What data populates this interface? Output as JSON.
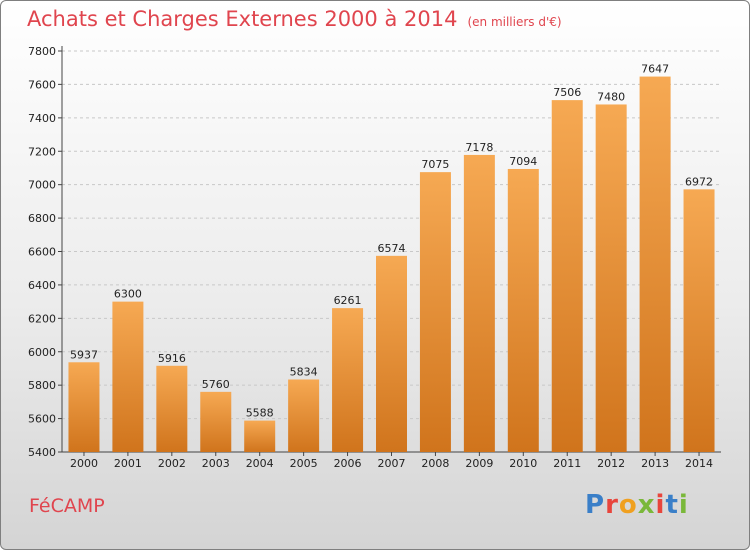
{
  "title": "Achats et Charges Externes 2000 à 2014",
  "unit_note": "(en milliers d'€)",
  "city": "FéCAMP",
  "logo": {
    "text": "Proxiti",
    "letter_colors": [
      "#3a7fc8",
      "#e8453c",
      "#f0a020",
      "#7ab83a",
      "#e8453c",
      "#3a7fc8",
      "#7ab83a"
    ]
  },
  "colors": {
    "bar_top": "#f6a953",
    "bar_bottom": "#d0741c",
    "title": "#e0454e"
  },
  "chart_data": {
    "type": "bar",
    "title": "Achats et Charges Externes 2000 à 2014",
    "subtitle": "(en milliers d'€)",
    "categories": [
      "2000",
      "2001",
      "2002",
      "2003",
      "2004",
      "2005",
      "2006",
      "2007",
      "2008",
      "2009",
      "2010",
      "2011",
      "2012",
      "2013",
      "2014"
    ],
    "values": [
      5937,
      6300,
      5916,
      5760,
      5588,
      5834,
      6261,
      6574,
      7075,
      7178,
      7094,
      7506,
      7480,
      7647,
      6972
    ],
    "ylim": [
      5400,
      7800
    ],
    "yticks": [
      5400,
      5600,
      5800,
      6000,
      6200,
      6400,
      6600,
      6800,
      7000,
      7200,
      7400,
      7600,
      7800
    ],
    "grid": true,
    "xlabel": "",
    "ylabel": ""
  }
}
